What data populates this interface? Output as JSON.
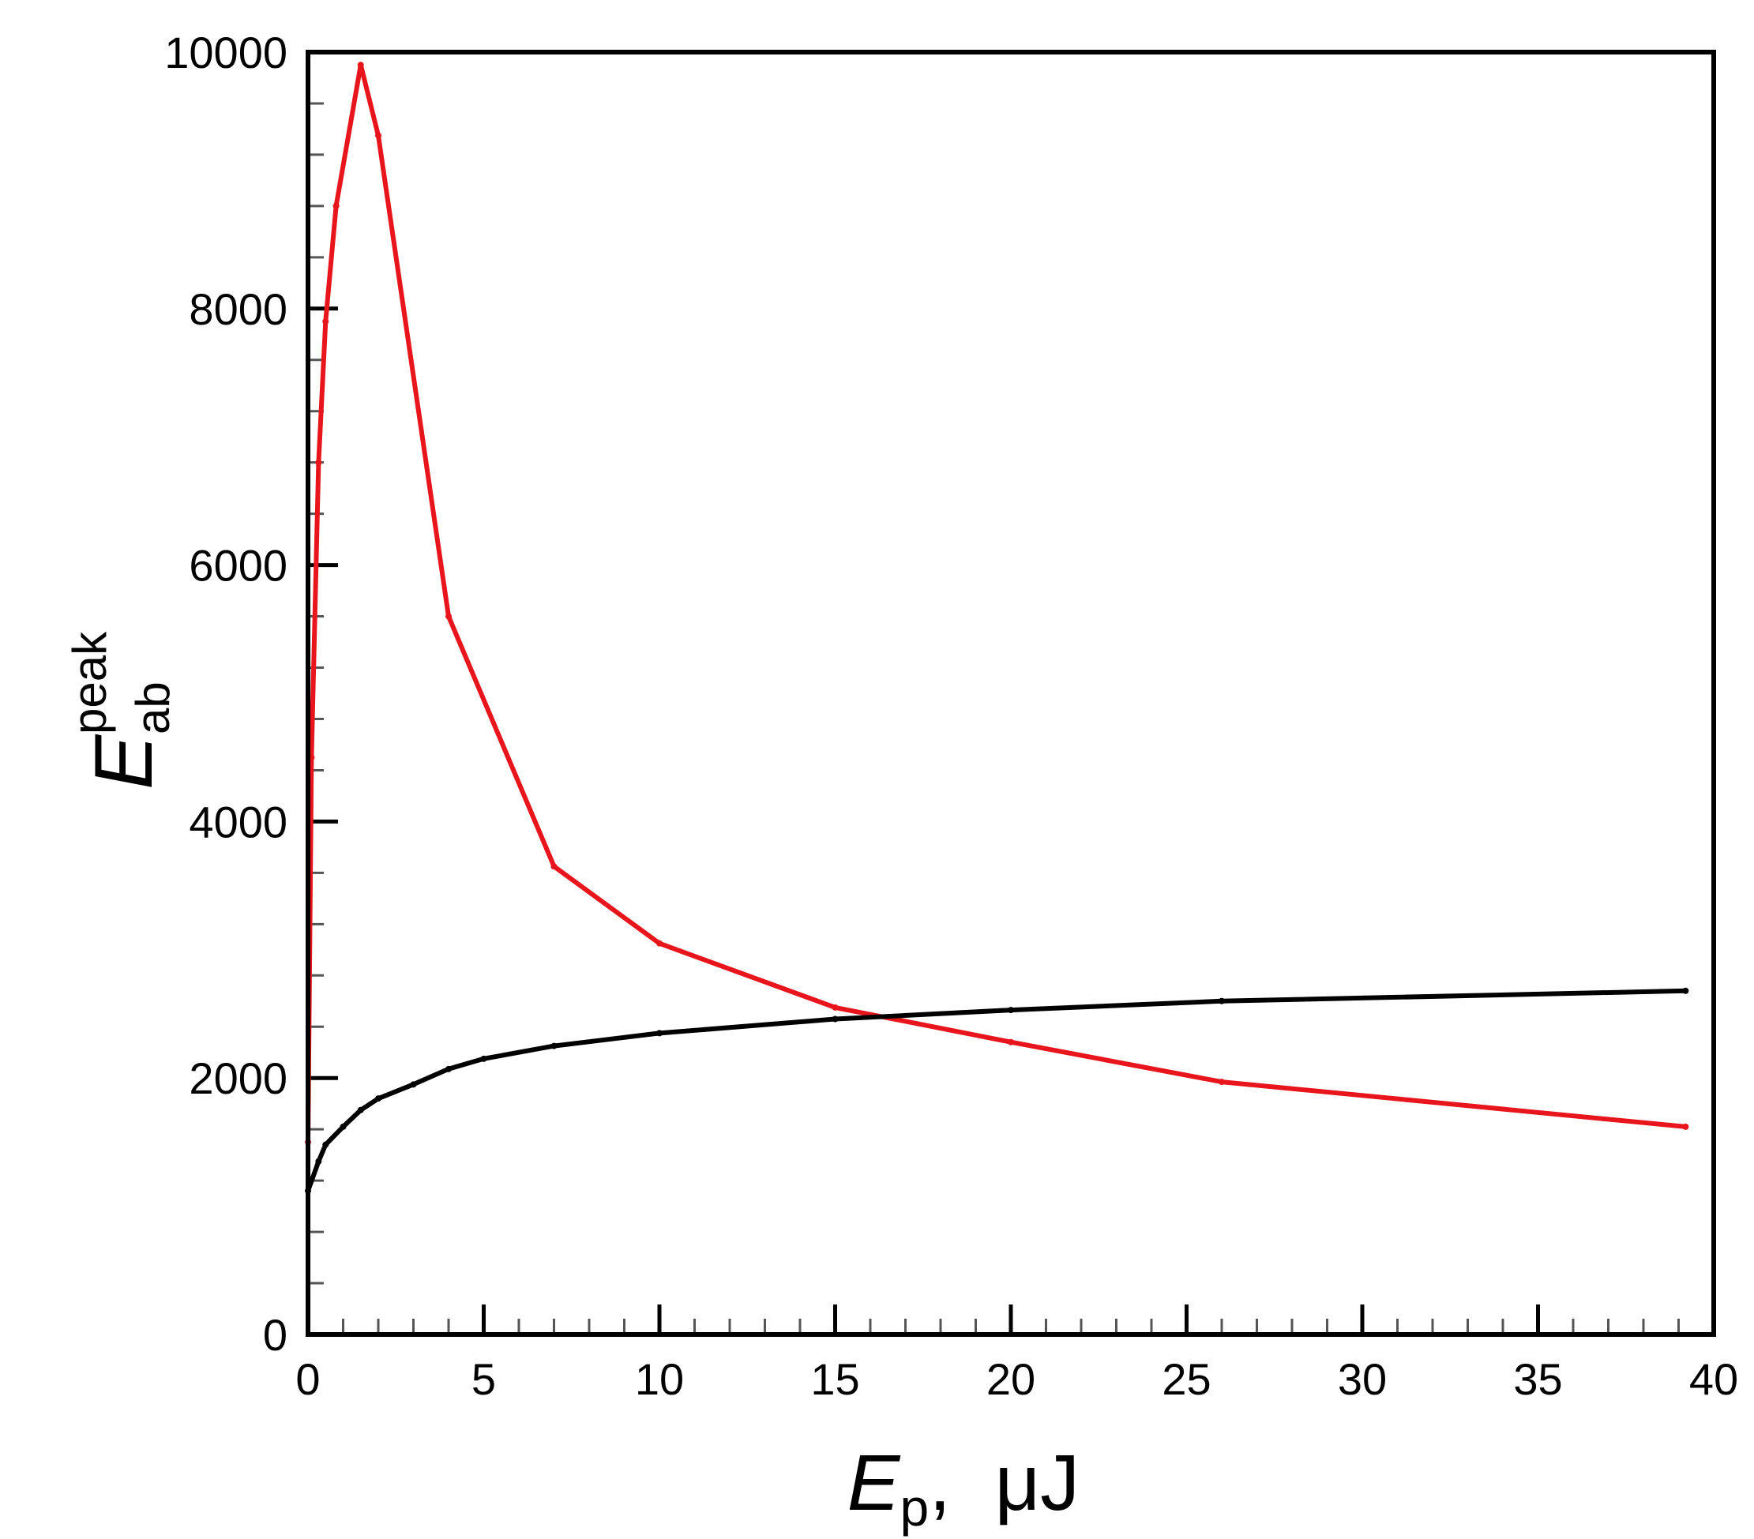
{
  "chart_data": {
    "type": "line",
    "xlabel": {
      "main": "E",
      "sub": "p",
      "suffix": ",  μJ"
    },
    "ylabel": {
      "main": "E",
      "sub": "ab",
      "sup": "peak"
    },
    "xlim": [
      0,
      40
    ],
    "ylim": [
      0,
      10000
    ],
    "x_ticks": [
      0,
      5,
      10,
      15,
      20,
      25,
      30,
      35,
      40
    ],
    "y_ticks": [
      0,
      2000,
      4000,
      6000,
      8000,
      10000
    ],
    "x_tick_labels": [
      "0",
      "5",
      "10",
      "15",
      "20",
      "25",
      "30",
      "35",
      "40"
    ],
    "y_tick_labels": [
      "0",
      "2000",
      "4000",
      "6000",
      "8000",
      "10000"
    ],
    "grid": false,
    "legend": "none",
    "series": [
      {
        "color": "#e8161c",
        "points": [
          [
            0.0,
            1500
          ],
          [
            0.1,
            4500
          ],
          [
            0.3,
            6800
          ],
          [
            0.5,
            7900
          ],
          [
            0.8,
            8800
          ],
          [
            1.5,
            9900
          ],
          [
            2.0,
            9350
          ],
          [
            4.0,
            5600
          ],
          [
            7.0,
            3650
          ],
          [
            10.0,
            3050
          ],
          [
            15.0,
            2550
          ],
          [
            20.0,
            2280
          ],
          [
            26.0,
            1970
          ],
          [
            39.2,
            1620
          ]
        ]
      },
      {
        "color": "#000000",
        "points": [
          [
            0.0,
            1120
          ],
          [
            0.3,
            1350
          ],
          [
            0.5,
            1480
          ],
          [
            1.0,
            1620
          ],
          [
            1.5,
            1750
          ],
          [
            2.0,
            1840
          ],
          [
            3.0,
            1950
          ],
          [
            4.0,
            2070
          ],
          [
            5.0,
            2150
          ],
          [
            7.0,
            2250
          ],
          [
            10.0,
            2350
          ],
          [
            15.0,
            2460
          ],
          [
            20.0,
            2530
          ],
          [
            26.0,
            2600
          ],
          [
            39.2,
            2680
          ]
        ]
      }
    ]
  }
}
